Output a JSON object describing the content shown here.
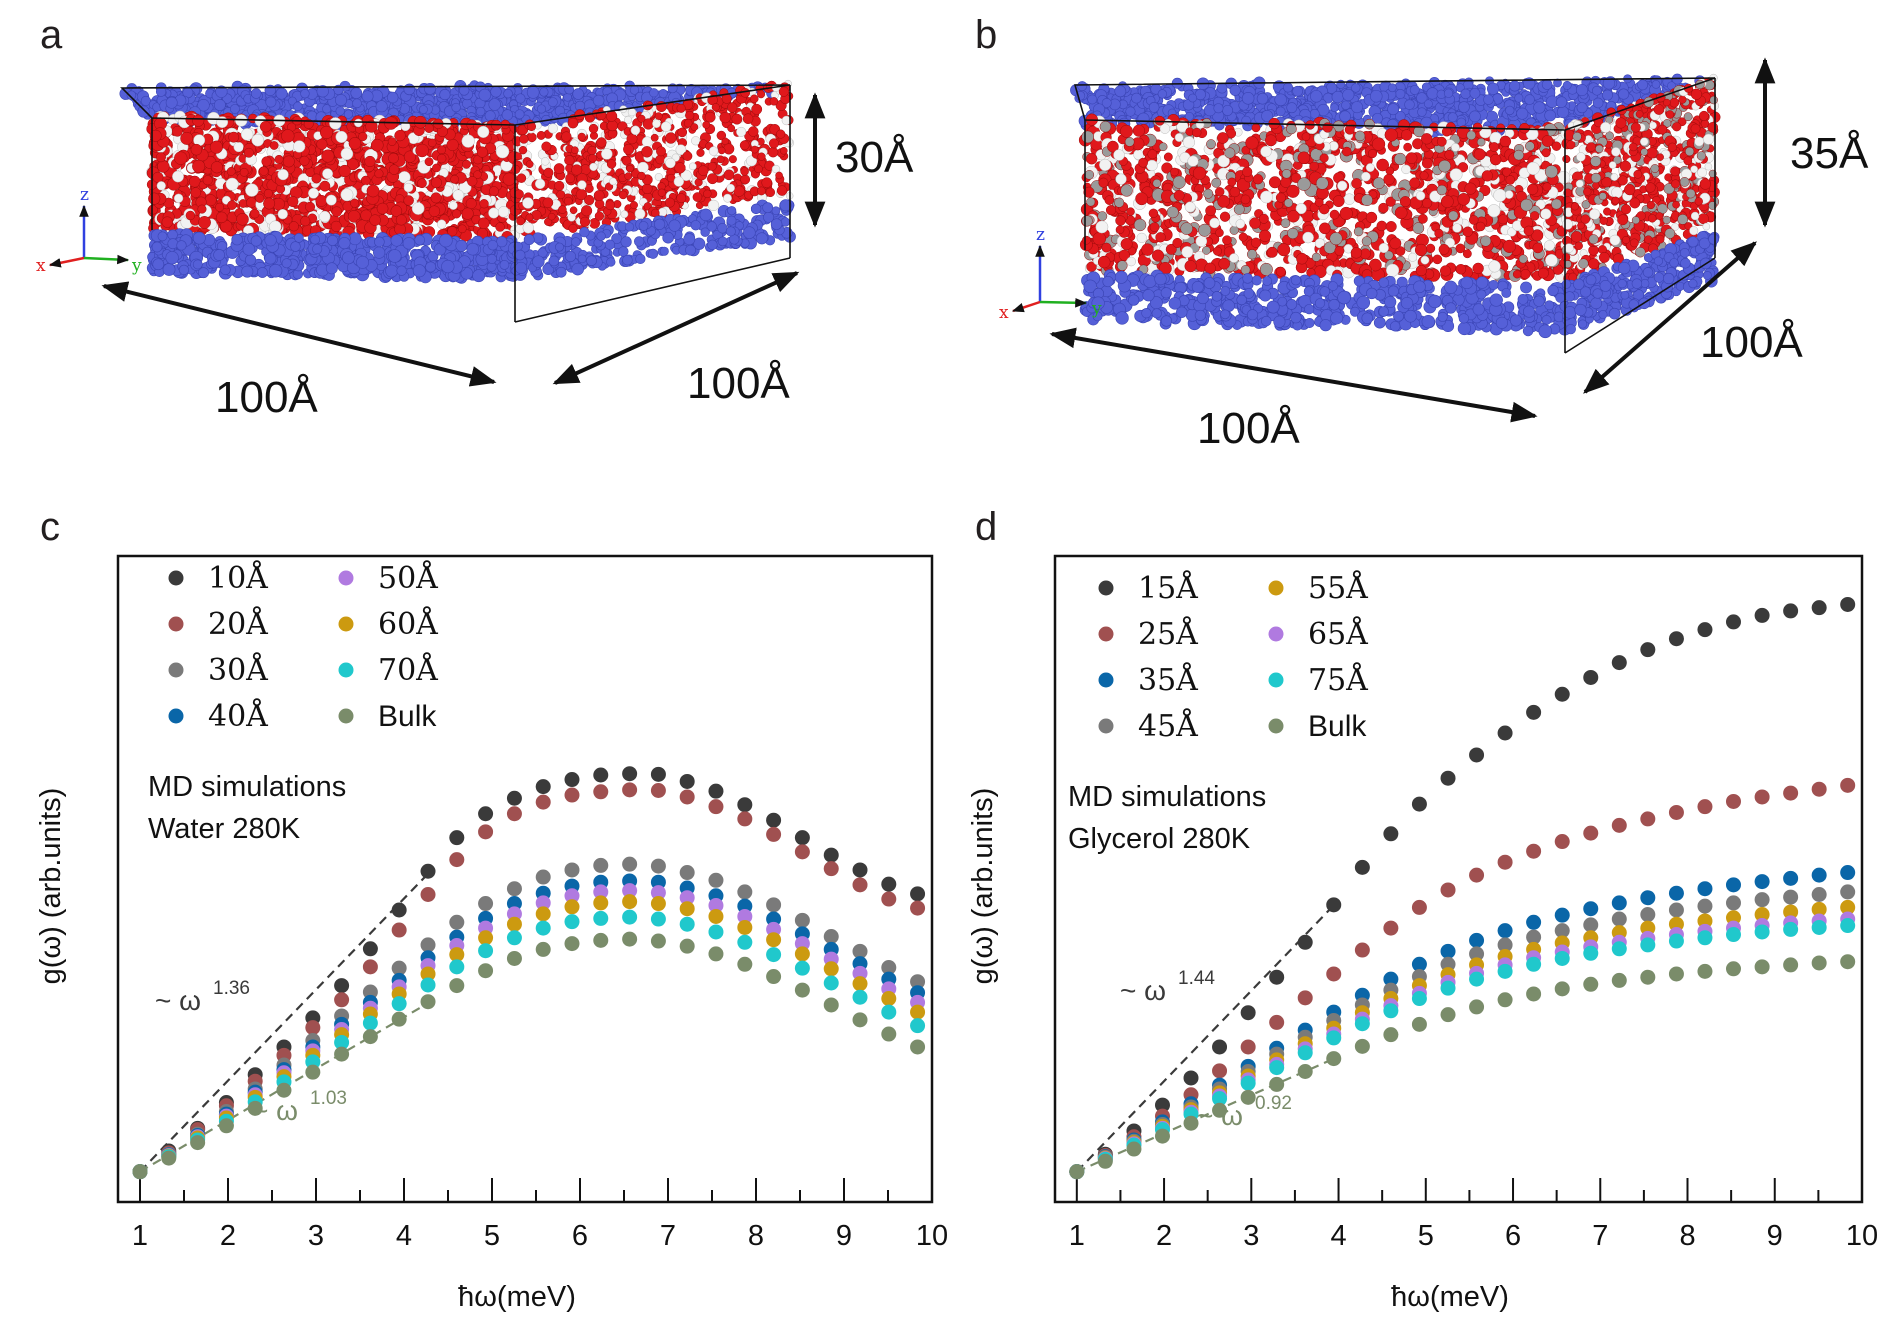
{
  "panels": {
    "a": {
      "letter": "a",
      "thickness_label": "30Å",
      "width_label": "100Å",
      "depth_label": "100Å",
      "axes": [
        "z",
        "x",
        "y"
      ]
    },
    "b": {
      "letter": "b",
      "thickness_label": "35Å",
      "width_label": "100Å",
      "depth_label": "100Å",
      "axes": [
        "z",
        "x",
        "y"
      ]
    }
  },
  "colors": {
    "substrate": "#5560d8",
    "oxygen": "#e0181c",
    "hydrogen": "#f2f2f2",
    "carbon": "#9a9a9a",
    "arrow": "#111111",
    "axis_x": "#e02020",
    "axis_y": "#20b020",
    "axis_z": "#3040e0"
  },
  "chart_data": [
    {
      "id": "c",
      "letter": "c",
      "type": "scatter",
      "xlabel": "ħω(meV)",
      "ylabel": "g(ω) (arb.units)",
      "xlim": [
        0.75,
        10
      ],
      "ylim": [
        0,
        10
      ],
      "xticks": [
        1,
        2,
        3,
        4,
        5,
        6,
        7,
        8,
        9,
        10
      ],
      "yticks_shown": false,
      "annotation_lines": [
        "MD simulations",
        "Water 280K"
      ],
      "x": [
        1,
        1.327,
        1.655,
        1.982,
        2.309,
        2.636,
        2.964,
        3.291,
        3.618,
        3.945,
        4.273,
        4.6,
        4.927,
        5.255,
        5.582,
        5.909,
        6.236,
        6.564,
        6.891,
        7.218,
        7.545,
        7.873,
        8.2,
        8.527,
        8.855,
        9.182,
        9.509,
        9.836
      ],
      "series": [
        {
          "name": "10Å",
          "color": "#3a3a3a",
          "values": [
            0.47,
            0.79,
            1.14,
            1.54,
            1.97,
            2.4,
            2.85,
            3.35,
            3.92,
            4.52,
            5.12,
            5.64,
            6.01,
            6.25,
            6.43,
            6.54,
            6.61,
            6.63,
            6.62,
            6.51,
            6.36,
            6.15,
            5.91,
            5.64,
            5.37,
            5.14,
            4.92,
            4.77
          ]
        },
        {
          "name": "20Å",
          "color": "#a05050",
          "values": [
            0.47,
            0.76,
            1.12,
            1.49,
            1.87,
            2.27,
            2.7,
            3.13,
            3.64,
            4.21,
            4.76,
            5.3,
            5.73,
            6.01,
            6.19,
            6.3,
            6.35,
            6.38,
            6.37,
            6.27,
            6.12,
            5.93,
            5.69,
            5.42,
            5.16,
            4.91,
            4.69,
            4.55
          ]
        },
        {
          "name": "30Å",
          "color": "#7a7a7a",
          "values": [
            0.47,
            0.74,
            1.05,
            1.4,
            1.75,
            2.12,
            2.5,
            2.88,
            3.25,
            3.62,
            3.98,
            4.33,
            4.62,
            4.85,
            5.03,
            5.14,
            5.21,
            5.23,
            5.2,
            5.1,
            4.98,
            4.8,
            4.6,
            4.36,
            4.11,
            3.88,
            3.63,
            3.41
          ]
        },
        {
          "name": "40Å",
          "color": "#0a66a8",
          "values": [
            0.47,
            0.73,
            1.03,
            1.36,
            1.7,
            2.05,
            2.4,
            2.75,
            3.09,
            3.43,
            3.78,
            4.1,
            4.39,
            4.62,
            4.78,
            4.89,
            4.95,
            4.97,
            4.95,
            4.86,
            4.74,
            4.58,
            4.38,
            4.15,
            3.91,
            3.69,
            3.45,
            3.24
          ]
        },
        {
          "name": "50Å",
          "color": "#b07ae0",
          "values": [
            0.47,
            0.72,
            1.01,
            1.33,
            1.66,
            2.0,
            2.34,
            2.67,
            3.0,
            3.33,
            3.66,
            3.97,
            4.24,
            4.46,
            4.63,
            4.74,
            4.8,
            4.82,
            4.79,
            4.71,
            4.59,
            4.42,
            4.22,
            4.0,
            3.76,
            3.54,
            3.3,
            3.09
          ]
        },
        {
          "name": "60Å",
          "color": "#cc9a10",
          "values": [
            0.47,
            0.71,
            0.99,
            1.3,
            1.62,
            1.94,
            2.27,
            2.59,
            2.91,
            3.22,
            3.53,
            3.83,
            4.09,
            4.3,
            4.46,
            4.57,
            4.63,
            4.65,
            4.62,
            4.54,
            4.42,
            4.25,
            4.06,
            3.84,
            3.61,
            3.38,
            3.15,
            2.94
          ]
        },
        {
          "name": "70Å",
          "color": "#20c8cc",
          "values": [
            0.47,
            0.7,
            0.96,
            1.25,
            1.55,
            1.86,
            2.17,
            2.47,
            2.77,
            3.07,
            3.36,
            3.64,
            3.89,
            4.09,
            4.24,
            4.34,
            4.39,
            4.41,
            4.38,
            4.3,
            4.18,
            4.02,
            3.83,
            3.62,
            3.39,
            3.17,
            2.94,
            2.73
          ]
        },
        {
          "name": "Bulk",
          "color": "#7a8c6a",
          "values": [
            0.47,
            0.68,
            0.92,
            1.18,
            1.45,
            1.73,
            2.01,
            2.29,
            2.56,
            2.83,
            3.1,
            3.35,
            3.58,
            3.77,
            3.91,
            4.0,
            4.05,
            4.07,
            4.04,
            3.96,
            3.84,
            3.68,
            3.49,
            3.28,
            3.05,
            2.82,
            2.6,
            2.4
          ]
        }
      ],
      "fits": [
        {
          "label_prefix": "~ ω",
          "exponent": "1.36",
          "color": "#3a3a3a",
          "x": [
            1,
            4.3
          ],
          "y": [
            0.47,
            5.12
          ]
        },
        {
          "label_prefix": "~ ω",
          "exponent": "1.03",
          "color": "#7a8c6a",
          "x": [
            1,
            4.3
          ],
          "y": [
            0.47,
            3.1
          ]
        }
      ],
      "legend_columns": 2
    },
    {
      "id": "d",
      "letter": "d",
      "type": "scatter",
      "xlabel": "ħω(meV)",
      "ylabel": "g(ω) (arb.units)",
      "xlim": [
        0.75,
        10
      ],
      "ylim": [
        0,
        10
      ],
      "xticks": [
        1,
        2,
        3,
        4,
        5,
        6,
        7,
        8,
        9,
        10
      ],
      "yticks_shown": false,
      "annotation_lines": [
        "MD simulations",
        "Glycerol 280K"
      ],
      "x": [
        1,
        1.327,
        1.655,
        1.982,
        2.309,
        2.636,
        2.964,
        3.291,
        3.618,
        3.945,
        4.273,
        4.6,
        4.927,
        5.255,
        5.582,
        5.909,
        6.236,
        6.564,
        6.891,
        7.218,
        7.545,
        7.873,
        8.2,
        8.527,
        8.855,
        9.182,
        9.509,
        9.836
      ],
      "series": [
        {
          "name": "15Å",
          "color": "#3a3a3a",
          "values": [
            0.47,
            0.74,
            1.1,
            1.5,
            1.92,
            2.4,
            2.93,
            3.48,
            4.02,
            4.6,
            5.18,
            5.7,
            6.16,
            6.56,
            6.92,
            7.26,
            7.58,
            7.86,
            8.12,
            8.35,
            8.55,
            8.72,
            8.86,
            8.98,
            9.08,
            9.15,
            9.2,
            9.25
          ]
        },
        {
          "name": "25Å",
          "color": "#a05050",
          "values": [
            0.47,
            0.72,
            1.01,
            1.33,
            1.66,
            2.03,
            2.4,
            2.78,
            3.16,
            3.53,
            3.9,
            4.24,
            4.56,
            4.83,
            5.06,
            5.26,
            5.43,
            5.58,
            5.71,
            5.83,
            5.93,
            6.03,
            6.12,
            6.2,
            6.27,
            6.33,
            6.39,
            6.45
          ]
        },
        {
          "name": "35Å",
          "color": "#0a66a8",
          "values": [
            0.47,
            0.7,
            0.96,
            1.24,
            1.52,
            1.81,
            2.1,
            2.38,
            2.66,
            2.94,
            3.2,
            3.45,
            3.68,
            3.88,
            4.05,
            4.2,
            4.33,
            4.44,
            4.54,
            4.63,
            4.71,
            4.78,
            4.85,
            4.91,
            4.96,
            5.01,
            5.06,
            5.1
          ]
        },
        {
          "name": "45Å",
          "color": "#7a7a7a",
          "values": [
            0.47,
            0.69,
            0.94,
            1.2,
            1.47,
            1.75,
            2.02,
            2.29,
            2.55,
            2.81,
            3.05,
            3.28,
            3.49,
            3.68,
            3.84,
            3.98,
            4.1,
            4.2,
            4.29,
            4.38,
            4.45,
            4.52,
            4.58,
            4.63,
            4.68,
            4.72,
            4.76,
            4.8
          ]
        },
        {
          "name": "55Å",
          "color": "#cc9a10",
          "values": [
            0.47,
            0.68,
            0.92,
            1.17,
            1.43,
            1.69,
            1.95,
            2.2,
            2.45,
            2.69,
            2.93,
            3.15,
            3.35,
            3.52,
            3.67,
            3.8,
            3.91,
            4.01,
            4.09,
            4.17,
            4.24,
            4.3,
            4.35,
            4.4,
            4.45,
            4.49,
            4.53,
            4.56
          ]
        },
        {
          "name": "65Å",
          "color": "#b07ae0",
          "values": [
            0.47,
            0.67,
            0.9,
            1.14,
            1.39,
            1.64,
            1.89,
            2.13,
            2.37,
            2.6,
            2.83,
            3.04,
            3.23,
            3.4,
            3.54,
            3.67,
            3.78,
            3.87,
            3.95,
            4.02,
            4.08,
            4.14,
            4.19,
            4.24,
            4.28,
            4.32,
            4.35,
            4.38
          ]
        },
        {
          "name": "75Å",
          "color": "#20c8cc",
          "values": [
            0.47,
            0.66,
            0.88,
            1.12,
            1.36,
            1.6,
            1.84,
            2.08,
            2.31,
            2.54,
            2.76,
            2.96,
            3.15,
            3.31,
            3.45,
            3.57,
            3.68,
            3.77,
            3.85,
            3.92,
            3.98,
            4.04,
            4.09,
            4.14,
            4.18,
            4.22,
            4.25,
            4.28
          ]
        },
        {
          "name": "Bulk",
          "color": "#7a8c6a",
          "values": [
            0.47,
            0.63,
            0.82,
            1.02,
            1.22,
            1.42,
            1.62,
            1.82,
            2.02,
            2.22,
            2.41,
            2.59,
            2.75,
            2.9,
            3.02,
            3.13,
            3.22,
            3.3,
            3.37,
            3.43,
            3.48,
            3.53,
            3.57,
            3.61,
            3.64,
            3.67,
            3.7,
            3.72
          ]
        }
      ],
      "fits": [
        {
          "label_prefix": "~ ω",
          "exponent": "1.44",
          "color": "#3a3a3a",
          "x": [
            1,
            3.95
          ],
          "y": [
            0.47,
            4.6
          ]
        },
        {
          "label_prefix": "~ ω",
          "exponent": "0.92",
          "color": "#7a8c6a",
          "x": [
            1,
            3.95
          ],
          "y": [
            0.47,
            2.22
          ]
        }
      ],
      "legend_columns": 2
    }
  ]
}
